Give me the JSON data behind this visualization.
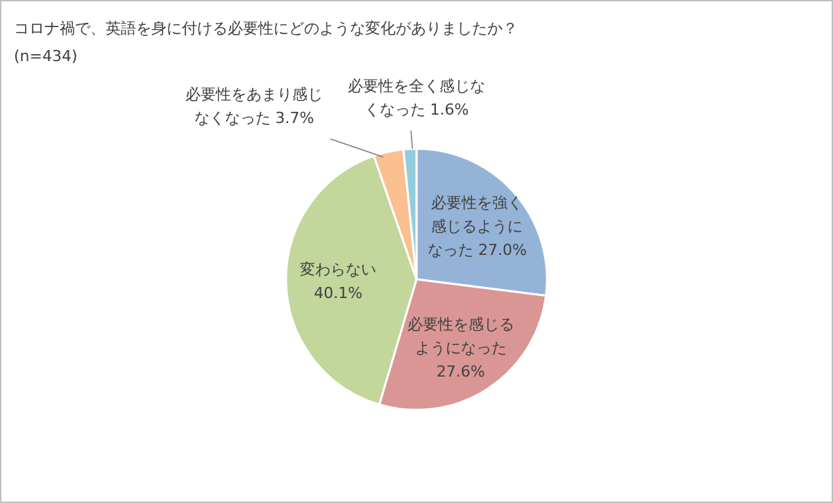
{
  "chart_data": {
    "type": "pie",
    "title": "コロナ禍で、英語を身に付ける必要性にどのような変化がありましたか？",
    "subtitle": "(n=434)",
    "categories": [
      "必要性を強く感じるようになった",
      "必要性を感じるようになった",
      "変わらない",
      "必要性をあまり感じなくなった",
      "必要性を全く感じなくなった"
    ],
    "values": [
      27.0,
      27.6,
      40.1,
      3.7,
      1.6
    ],
    "colors": [
      "#95b3d7",
      "#d99694",
      "#c3d69b",
      "#fac090",
      "#93cddd"
    ],
    "value_labels": [
      "27.0%",
      "27.6%",
      "40.1%",
      "3.7%",
      "1.6%"
    ],
    "legend": false
  }
}
